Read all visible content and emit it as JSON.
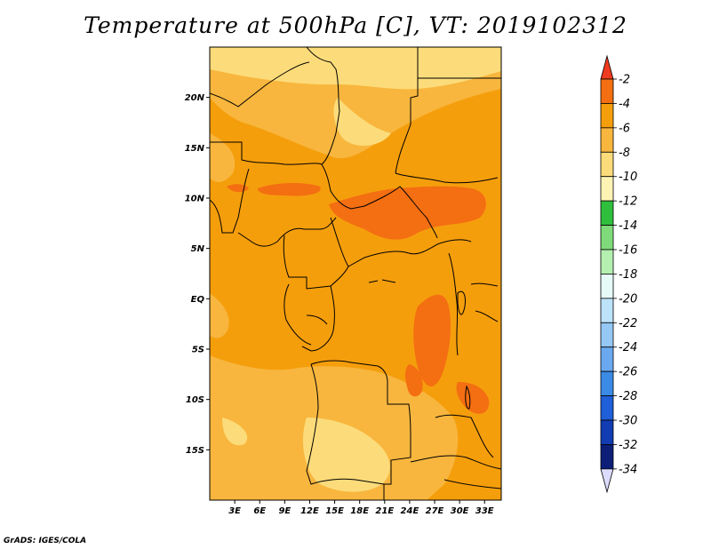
{
  "title": "Temperature at 500hPa [C], VT: 2019102312",
  "credit": "GrADS: IGES/COLA",
  "map": {
    "lat_labels": [
      "20N",
      "15N",
      "10N",
      "5N",
      "EQ",
      "5S",
      "10S",
      "15S"
    ],
    "lon_labels": [
      "3E",
      "6E",
      "9E",
      "12E",
      "15E",
      "18E",
      "21E",
      "24E",
      "27E",
      "30E",
      "33E"
    ],
    "lat_range": [
      -20,
      25
    ],
    "lon_range": [
      0,
      35
    ]
  },
  "colorbar": {
    "labels": [
      "-2",
      "-4",
      "-6",
      "-8",
      "-10",
      "-12",
      "-14",
      "-16",
      "-18",
      "-20",
      "-22",
      "-24",
      "-26",
      "-28",
      "-30",
      "-32",
      "-34"
    ],
    "colors": [
      "#ee3a1e",
      "#f46e12",
      "#f59e0c",
      "#f8b63e",
      "#fcdc7a",
      "#fdf4b4",
      "#2fbf3d",
      "#7fdb7a",
      "#b4f0b0",
      "#e6fbf8",
      "#bde3fb",
      "#95c8f4",
      "#6aa9ef",
      "#3a8ae6",
      "#1f5fd7",
      "#113cb2",
      "#0c1e78",
      "#dcdcff"
    ]
  },
  "chart_data": {
    "type": "heatmap",
    "title": "Temperature at 500hPa [C], VT: 2019102312",
    "x_ticks": [
      "3E",
      "6E",
      "9E",
      "12E",
      "15E",
      "18E",
      "21E",
      "24E",
      "27E",
      "30E",
      "33E"
    ],
    "y_ticks": [
      "20N",
      "15N",
      "10N",
      "5N",
      "EQ",
      "5S",
      "10S",
      "15S"
    ],
    "color_levels": [
      -34,
      -32,
      -30,
      -28,
      -26,
      -24,
      -22,
      -20,
      -18,
      -16,
      -14,
      -12,
      -10,
      -8,
      -6,
      -4,
      -2
    ],
    "field_regions": [
      {
        "area": "north",
        "lon_range": [
          0,
          35
        ],
        "lat_range": [
          15,
          25
        ],
        "value_range": [
          -8,
          -6
        ]
      },
      {
        "area": "central band",
        "lon_range": [
          13,
          31
        ],
        "lat_range": [
          4,
          11
        ],
        "value_range": [
          -4,
          -2
        ]
      },
      {
        "area": "central basin",
        "lon_range": [
          24,
          29
        ],
        "lat_range": [
          -8,
          -2
        ],
        "value_range": [
          -4,
          -2
        ]
      },
      {
        "area": "southwest",
        "lon_range": [
          12,
          22
        ],
        "lat_range": [
          -20,
          -12
        ],
        "value_range": [
          -10,
          -8
        ]
      },
      {
        "area": "bulk",
        "lon_range": [
          0,
          35
        ],
        "lat_range": [
          -20,
          25
        ],
        "value_range": [
          -6,
          -4
        ]
      }
    ]
  }
}
